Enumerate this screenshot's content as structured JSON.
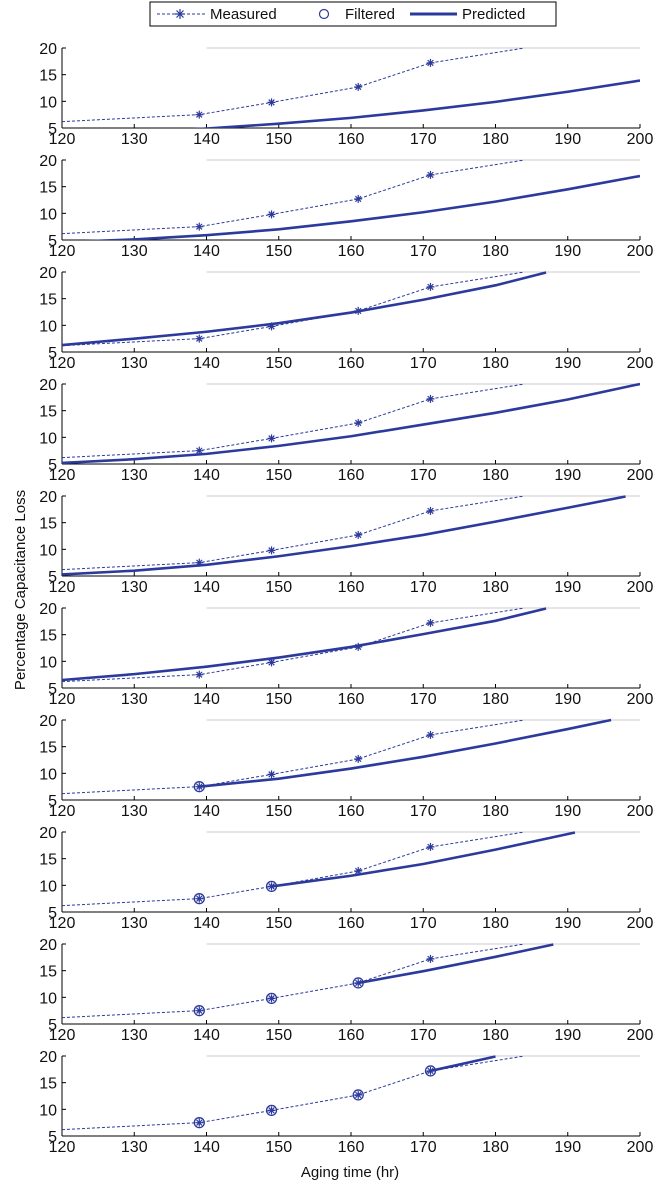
{
  "chart_data": {
    "type": "line",
    "xlabel": "Aging time (hr)",
    "ylabel": "Percentage Capacitance Loss",
    "xlim": [
      120,
      200
    ],
    "ylim": [
      5,
      20
    ],
    "xticks": [
      120,
      130,
      140,
      150,
      160,
      170,
      180,
      190,
      200
    ],
    "yticks": [
      5,
      10,
      15,
      20
    ],
    "threshold": 20,
    "legend_position": "top-center",
    "legend": [
      "Measured",
      "Filtered",
      "Predicted"
    ],
    "colors": {
      "series": "#2b3a9c",
      "threshold": "#cccccc",
      "axis": "#000000"
    },
    "measured": {
      "x": [
        120,
        139,
        149,
        161,
        171,
        184
      ],
      "y": [
        6.2,
        7.5,
        9.8,
        12.7,
        17.2,
        20
      ]
    },
    "panels": [
      {
        "filtered": [],
        "predicted": {
          "x": [
            120,
            130,
            140,
            150,
            160,
            170,
            180,
            190,
            200
          ],
          "y": [
            3.5,
            4.2,
            4.9,
            5.8,
            6.9,
            8.3,
            9.9,
            11.8,
            13.9
          ]
        }
      },
      {
        "filtered": [],
        "predicted": {
          "x": [
            120,
            130,
            140,
            150,
            160,
            170,
            180,
            190,
            200
          ],
          "y": [
            4.6,
            5.1,
            5.9,
            7.0,
            8.5,
            10.2,
            12.2,
            14.5,
            17.0
          ]
        }
      },
      {
        "filtered": [],
        "predicted": {
          "x": [
            120,
            130,
            140,
            150,
            160,
            170,
            180,
            187
          ],
          "y": [
            6.3,
            7.5,
            8.8,
            10.4,
            12.4,
            14.8,
            17.5,
            19.9
          ]
        }
      },
      {
        "filtered": [],
        "predicted": {
          "x": [
            120,
            130,
            140,
            150,
            160,
            170,
            180,
            190,
            200
          ],
          "y": [
            5.2,
            5.9,
            6.9,
            8.4,
            10.2,
            12.4,
            14.6,
            17.1,
            20.0
          ]
        }
      },
      {
        "filtered": [],
        "predicted": {
          "x": [
            120,
            130,
            140,
            150,
            160,
            170,
            180,
            190,
            198
          ],
          "y": [
            5.3,
            6.0,
            7.1,
            8.7,
            10.6,
            12.7,
            15.2,
            17.8,
            19.9
          ]
        }
      },
      {
        "filtered": [],
        "predicted": {
          "x": [
            120,
            130,
            140,
            150,
            160,
            170,
            180,
            187
          ],
          "y": [
            6.5,
            7.6,
            9.0,
            10.7,
            12.7,
            15.1,
            17.6,
            19.9
          ]
        }
      },
      {
        "filtered": [
          {
            "x": 139,
            "y": 7.5
          }
        ],
        "predicted": {
          "x": [
            139,
            150,
            160,
            170,
            180,
            190,
            196
          ],
          "y": [
            7.5,
            9.0,
            10.9,
            13.1,
            15.6,
            18.3,
            20.0
          ]
        }
      },
      {
        "filtered": [
          {
            "x": 139,
            "y": 7.5
          },
          {
            "x": 149,
            "y": 9.8
          }
        ],
        "predicted": {
          "x": [
            149,
            160,
            170,
            180,
            191
          ],
          "y": [
            9.8,
            11.8,
            14.0,
            16.7,
            19.9
          ]
        }
      },
      {
        "filtered": [
          {
            "x": 139,
            "y": 7.5
          },
          {
            "x": 149,
            "y": 9.8
          },
          {
            "x": 161,
            "y": 12.7
          }
        ],
        "predicted": {
          "x": [
            161,
            170,
            180,
            188
          ],
          "y": [
            12.7,
            14.9,
            17.6,
            19.9
          ]
        }
      },
      {
        "filtered": [
          {
            "x": 139,
            "y": 7.5
          },
          {
            "x": 149,
            "y": 9.8
          },
          {
            "x": 161,
            "y": 12.7
          },
          {
            "x": 171,
            "y": 17.2
          }
        ],
        "predicted": {
          "x": [
            171,
            175,
            180
          ],
          "y": [
            17.2,
            18.4,
            19.9
          ]
        }
      }
    ]
  }
}
